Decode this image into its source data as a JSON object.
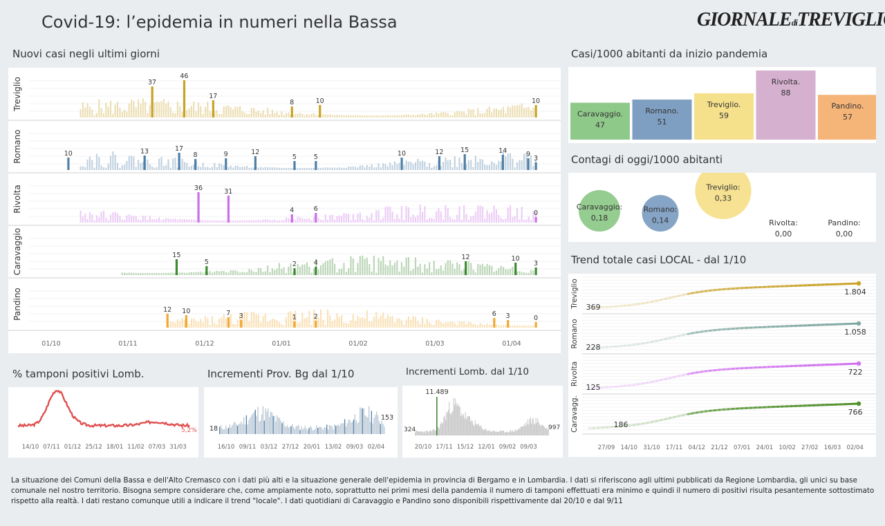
{
  "header": {
    "title": "Covid-19: l’epidemia  in numeri nella Bassa",
    "logo_main": "GIORNALE",
    "logo_di": "di",
    "logo_city": "TREVIGLIO"
  },
  "sections": {
    "new_cases": "Nuovi casi negli ultimi   giorni",
    "cases_per_1000": "Casi/1000 abitanti da inizio pandemia",
    "today_per_1000": "Contagi di oggi/1000 abitanti",
    "trend": "Trend totale casi  LOCAL - dal 1/10",
    "positivity": "% tamponi positivi Lomb.",
    "prov_bg": "Incrementi Prov. Bg dal 1/10",
    "lomb": "Incrementi Lomb. dal 1/10"
  },
  "colors": {
    "treviglio": "#c9a227",
    "romano": "#4f7fa6",
    "rivolta": "#c970e6",
    "caravaggio": "#3d8a32",
    "pandino": "#f0a830",
    "red": "#e05050",
    "grey": "#bbbbbb"
  },
  "chart_data": [
    {
      "type": "bar",
      "id": "new_cases",
      "title": "Nuovi casi negli ultimi   giorni",
      "x_ticks": [
        "01/10",
        "01/11",
        "01/12",
        "01/01",
        "01/02",
        "01/03",
        "01/04"
      ],
      "series": [
        {
          "name": "Treviglio",
          "color": "#c9a227",
          "labels": [
            {
              "value": "37",
              "i": 0.245
            },
            {
              "value": "46",
              "i": 0.308
            },
            {
              "value": "17",
              "i": 0.365
            },
            {
              "value": "8",
              "i": 0.52
            },
            {
              "value": "10",
              "i": 0.575
            },
            {
              "value": "10",
              "i": 1.0
            }
          ]
        },
        {
          "name": "Romano",
          "color": "#4f7fa6",
          "labels": [
            {
              "value": "10",
              "i": 0.08
            },
            {
              "value": "13",
              "i": 0.23
            },
            {
              "value": "17",
              "i": 0.298
            },
            {
              "value": "8",
              "i": 0.33
            },
            {
              "value": "9",
              "i": 0.39
            },
            {
              "value": "12",
              "i": 0.448
            },
            {
              "value": "5",
              "i": 0.525
            },
            {
              "value": "5",
              "i": 0.567
            },
            {
              "value": "10",
              "i": 0.736
            },
            {
              "value": "12",
              "i": 0.81
            },
            {
              "value": "15",
              "i": 0.86
            },
            {
              "value": "14",
              "i": 0.935
            },
            {
              "value": "9",
              "i": 0.985
            },
            {
              "value": "3",
              "i": 1.0
            }
          ]
        },
        {
          "name": "Rivolta",
          "color": "#c970e6",
          "labels": [
            {
              "value": "36",
              "i": 0.336
            },
            {
              "value": "31",
              "i": 0.395
            },
            {
              "value": "4",
              "i": 0.52
            },
            {
              "value": "6",
              "i": 0.567
            },
            {
              "value": "0",
              "i": 1.0
            }
          ]
        },
        {
          "name": "Caravaggio",
          "color": "#3d8a32",
          "labels": [
            {
              "value": "15",
              "i": 0.293
            },
            {
              "value": "5",
              "i": 0.352
            },
            {
              "value": "2",
              "i": 0.525
            },
            {
              "value": "4",
              "i": 0.567
            },
            {
              "value": "12",
              "i": 0.862
            },
            {
              "value": "10",
              "i": 0.96
            },
            {
              "value": "3",
              "i": 1.0
            }
          ]
        },
        {
          "name": "Pandino",
          "color": "#f0a830",
          "labels": [
            {
              "value": "12",
              "i": 0.275
            },
            {
              "value": "10",
              "i": 0.312
            },
            {
              "value": "7",
              "i": 0.395
            },
            {
              "value": "3",
              "i": 0.42
            },
            {
              "value": "1",
              "i": 0.525
            },
            {
              "value": "2",
              "i": 0.567
            },
            {
              "value": "6",
              "i": 0.918
            },
            {
              "value": "3",
              "i": 0.945
            },
            {
              "value": "0",
              "i": 1.0
            }
          ]
        }
      ]
    },
    {
      "type": "bar",
      "id": "cases_per_1000",
      "title": "Casi/1000 abitanti da inizio pandemia",
      "categories": [
        "Caravaggio.",
        "Romano.",
        "Treviglio.",
        "Rivolta.",
        "Pandino."
      ],
      "values": [
        47,
        51,
        59,
        88,
        57
      ],
      "colors": [
        "#8fc98a",
        "#7f9fc2",
        "#f5e08c",
        "#d6b0cf",
        "#f5b478"
      ],
      "ylim": [
        0,
        88
      ]
    },
    {
      "type": "scatter",
      "id": "today_per_1000",
      "title": "Contagi di oggi/1000 abitanti",
      "categories": [
        "Caravaggio:",
        "Romano:",
        "Treviglio:",
        "Rivolta:",
        "Pandino:"
      ],
      "values": [
        "0,18",
        "0,14",
        "0,33",
        "0,00",
        "0,00"
      ],
      "numeric": [
        0.18,
        0.14,
        0.33,
        0,
        0
      ],
      "colors": [
        "#8fc98a",
        "#7f9fc2",
        "#f5e08c",
        "#dddddd",
        "#dddddd"
      ]
    },
    {
      "type": "line",
      "id": "trend",
      "title": "Trend totale casi  LOCAL - dal 1/10",
      "x_ticks": [
        "27/09",
        "14/10",
        "31/10",
        "17/11",
        "04/12",
        "21/12",
        "07/01",
        "24/01",
        "10/02",
        "27/02",
        "16/03",
        "02/04"
      ],
      "series": [
        {
          "name": "Treviglio",
          "start": "369",
          "end": "1.804",
          "start_v": 369,
          "end_v": 1804,
          "color": "#c9a227"
        },
        {
          "name": "Romano",
          "start": "228",
          "end": "1.058",
          "start_v": 228,
          "end_v": 1058,
          "color": "#7fa8a0"
        },
        {
          "name": "Rivolta",
          "start": "125",
          "end": "722",
          "start_v": 125,
          "end_v": 722,
          "color": "#d070ee"
        },
        {
          "name": "Caravagg.",
          "start": "186",
          "end": "766",
          "start_v": 186,
          "end_v": 766,
          "color": "#4f8f2a"
        }
      ]
    },
    {
      "type": "line",
      "id": "positivity",
      "title": "% tamponi positivi Lomb.",
      "x_ticks": [
        "14/10",
        "07/11",
        "01/12",
        "25/12",
        "18/01",
        "11/02",
        "07/03",
        "31/03"
      ],
      "last_label": "5,2%",
      "color": "#e05050"
    },
    {
      "type": "bar",
      "id": "prov_bg",
      "title": "Incrementi Prov. Bg dal 1/10",
      "x_ticks": [
        "16/10",
        "09/11",
        "03/12",
        "27/12",
        "20/01",
        "13/02",
        "09/03",
        "02/04"
      ],
      "first_label": "18",
      "last_label": "153"
    },
    {
      "type": "bar",
      "id": "lomb",
      "title": "Incrementi Lomb. dal 1/10",
      "x_ticks": [
        "20/10",
        "17/11",
        "15/12",
        "12/01",
        "09/02",
        "09/03"
      ],
      "first_label": "324",
      "peak_label": "11.489",
      "last_label": "997"
    }
  ],
  "footer": "La situazione dei Comuni della Bassa e dell'Alto Cremasco con i dati più alti e la situazione generale dell'epidemia in provincia di Bergamo e in Lombardia.  I dati si riferiscono agli ultimi pubblicati da Regione Lombardia, gli unici su base comunale nel  nostro territorio.  Bisogna sempre considerare che, come ampiamente noto, soprattutto nei primi mesi della pandemia il numero di tamponi effettuati era minimo e quindi il numero di positivi risulta pesantemente sottostimato rispetto alla realtà. I dati restano comunque utili a indicare il trend \"locale\".  I dati quotidiani di Caravaggio e Pandino sono disponibili rispettivamente dal 20/10 e dal 9/11"
}
